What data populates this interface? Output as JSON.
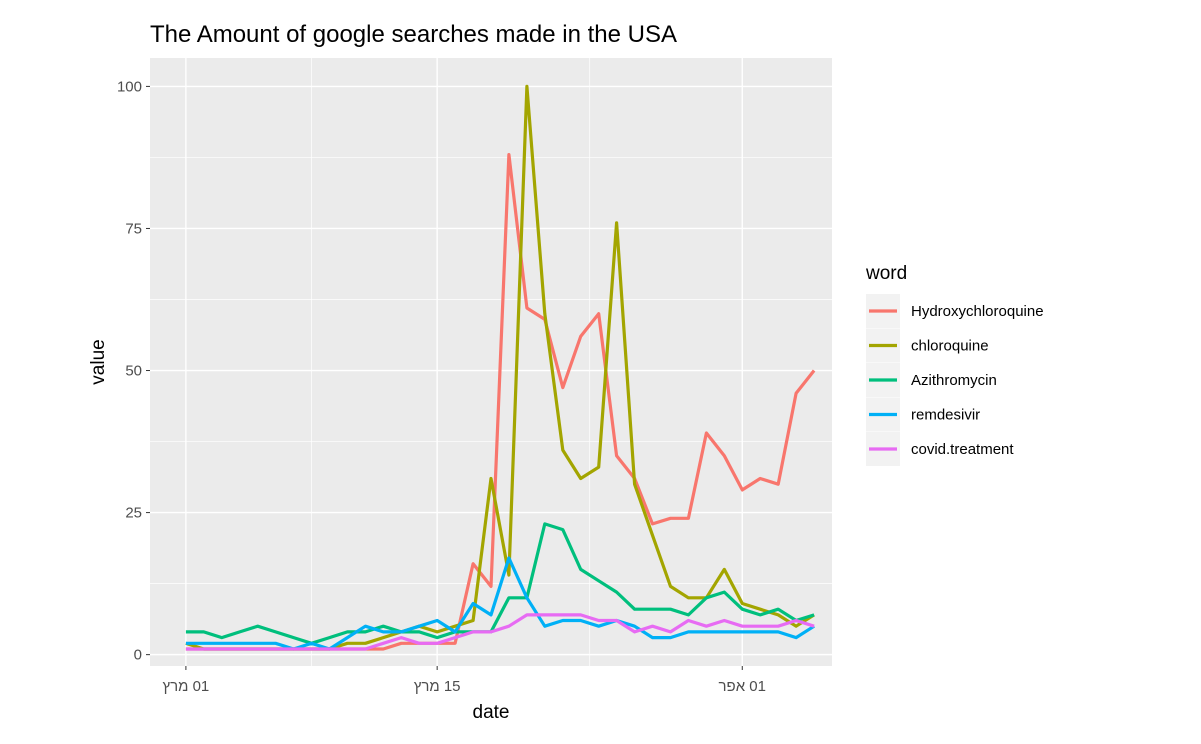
{
  "chart_data": {
    "type": "line",
    "title": "The Amount of google searches made in the USA",
    "xlabel": "date",
    "ylabel": "value",
    "x_axis": {
      "type": "date",
      "range": [
        "2020-02-28",
        "2020-04-06"
      ],
      "ticks": [
        {
          "value": "2020-03-01",
          "label": "01 מרץ"
        },
        {
          "value": "2020-03-15",
          "label": "15 מרץ"
        },
        {
          "value": "2020-04-01",
          "label": "01 אפר"
        }
      ]
    },
    "y_axis": {
      "range": [
        -2,
        105
      ],
      "ticks": [
        0,
        25,
        50,
        75,
        100
      ]
    },
    "grid": true,
    "legend": {
      "title": "word",
      "position": "right"
    },
    "x": [
      "2020-03-01",
      "2020-03-02",
      "2020-03-03",
      "2020-03-04",
      "2020-03-05",
      "2020-03-06",
      "2020-03-07",
      "2020-03-08",
      "2020-03-09",
      "2020-03-10",
      "2020-03-11",
      "2020-03-12",
      "2020-03-13",
      "2020-03-14",
      "2020-03-15",
      "2020-03-16",
      "2020-03-17",
      "2020-03-18",
      "2020-03-19",
      "2020-03-20",
      "2020-03-21",
      "2020-03-22",
      "2020-03-23",
      "2020-03-24",
      "2020-03-25",
      "2020-03-26",
      "2020-03-27",
      "2020-03-28",
      "2020-03-29",
      "2020-03-30",
      "2020-03-31",
      "2020-04-01",
      "2020-04-02",
      "2020-04-03",
      "2020-04-04",
      "2020-04-05"
    ],
    "series": [
      {
        "name": "Hydroxychloroquine",
        "color": "#F8766D",
        "values": [
          1,
          1,
          1,
          1,
          1,
          1,
          1,
          1,
          1,
          1,
          1,
          1,
          2,
          2,
          2,
          2,
          16,
          12,
          88,
          61,
          59,
          47,
          56,
          60,
          35,
          31,
          23,
          24,
          24,
          39,
          35,
          29,
          31,
          30,
          46,
          50
        ]
      },
      {
        "name": "chloroquine",
        "color": "#A3A500",
        "values": [
          2,
          1,
          1,
          1,
          1,
          1,
          1,
          1,
          1,
          2,
          2,
          3,
          4,
          5,
          4,
          5,
          6,
          31,
          14,
          100,
          60,
          36,
          31,
          33,
          76,
          30,
          21,
          12,
          10,
          10,
          15,
          9,
          8,
          7,
          5,
          7
        ]
      },
      {
        "name": "Azithromycin",
        "color": "#00BF7D",
        "values": [
          4,
          4,
          3,
          4,
          5,
          4,
          3,
          2,
          3,
          4,
          4,
          5,
          4,
          4,
          3,
          4,
          4,
          4,
          10,
          10,
          23,
          22,
          15,
          13,
          11,
          8,
          8,
          8,
          7,
          10,
          11,
          8,
          7,
          8,
          6,
          7
        ]
      },
      {
        "name": "remdesivir",
        "color": "#00B0F6",
        "values": [
          2,
          2,
          2,
          2,
          2,
          2,
          1,
          2,
          1,
          3,
          5,
          4,
          4,
          5,
          6,
          4,
          9,
          7,
          17,
          10,
          5,
          6,
          6,
          5,
          6,
          5,
          3,
          3,
          4,
          4,
          4,
          4,
          4,
          4,
          3,
          5
        ]
      },
      {
        "name": "covid.treatment",
        "color": "#E76BF3",
        "values": [
          1,
          1,
          1,
          1,
          1,
          1,
          1,
          1,
          1,
          1,
          1,
          2,
          3,
          2,
          2,
          3,
          4,
          4,
          5,
          7,
          7,
          7,
          7,
          6,
          6,
          4,
          5,
          4,
          6,
          5,
          6,
          5,
          5,
          5,
          6,
          5
        ]
      }
    ]
  }
}
